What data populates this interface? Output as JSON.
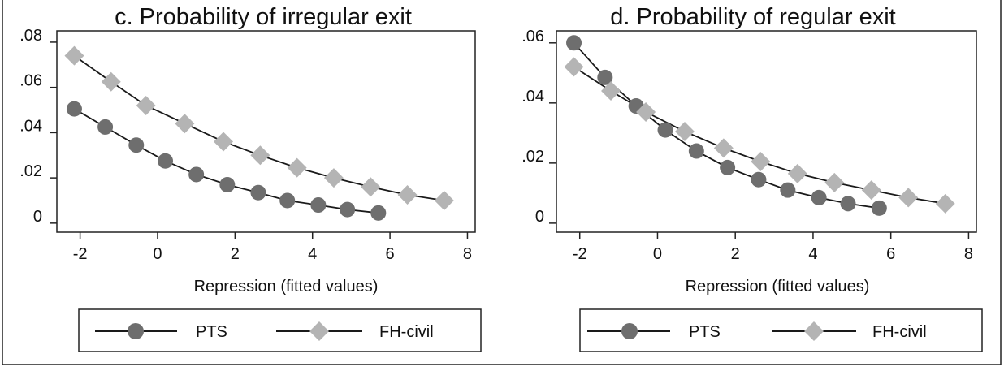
{
  "colors": {
    "pts": "#6e6e6e",
    "fh": "#b4b4b4",
    "line": "#1a1a1a",
    "frame": "#222222"
  },
  "chart_data": [
    {
      "type": "line",
      "title": "c. Probability of irregular exit",
      "xlabel": "Repression (fitted values)",
      "ylabel": "",
      "xlim": [
        -2.6,
        8.2
      ],
      "ylim": [
        -0.004,
        0.085
      ],
      "xticks": [
        -2,
        0,
        2,
        4,
        6,
        8
      ],
      "xtick_labels": [
        "-2",
        "0",
        "2",
        "4",
        "6",
        "8"
      ],
      "yticks": [
        0,
        0.02,
        0.04,
        0.06,
        0.08
      ],
      "ytick_labels": [
        "0",
        ".02",
        ".04",
        ".06",
        ".08"
      ],
      "grid": false,
      "legend": {
        "position": "bottom",
        "entries": [
          "PTS",
          "FH-civil"
        ]
      },
      "series": [
        {
          "name": "PTS",
          "marker": "circle",
          "x": [
            -2.15,
            -1.35,
            -0.55,
            0.2,
            1.0,
            1.8,
            2.6,
            3.35,
            4.15,
            4.9,
            5.7
          ],
          "y": [
            0.0505,
            0.0425,
            0.0345,
            0.0275,
            0.0215,
            0.017,
            0.0135,
            0.01,
            0.008,
            0.006,
            0.0045
          ]
        },
        {
          "name": "FH-civil",
          "marker": "diamond",
          "x": [
            -2.15,
            -1.2,
            -0.3,
            0.7,
            1.7,
            2.65,
            3.6,
            4.55,
            5.5,
            6.45,
            7.4
          ],
          "y": [
            0.074,
            0.0625,
            0.052,
            0.044,
            0.036,
            0.03,
            0.0245,
            0.02,
            0.016,
            0.0125,
            0.01
          ]
        }
      ]
    },
    {
      "type": "line",
      "title": "d. Probability of regular exit",
      "xlabel": "Repression (fitted values)",
      "ylabel": "",
      "xlim": [
        -2.6,
        8.2
      ],
      "ylim": [
        -0.003,
        0.064
      ],
      "xticks": [
        -2,
        0,
        2,
        4,
        6,
        8
      ],
      "xtick_labels": [
        "-2",
        "0",
        "2",
        "4",
        "6",
        "8"
      ],
      "yticks": [
        0,
        0.02,
        0.04,
        0.06
      ],
      "ytick_labels": [
        "0",
        ".02",
        ".04",
        ".06"
      ],
      "grid": false,
      "legend": {
        "position": "bottom",
        "entries": [
          "PTS",
          "FH-civil"
        ]
      },
      "series": [
        {
          "name": "PTS",
          "marker": "circle",
          "x": [
            -2.15,
            -1.35,
            -0.55,
            0.2,
            1.0,
            1.8,
            2.6,
            3.35,
            4.15,
            4.9,
            5.7
          ],
          "y": [
            0.06,
            0.0485,
            0.039,
            0.031,
            0.024,
            0.0185,
            0.0145,
            0.011,
            0.0085,
            0.0065,
            0.005
          ]
        },
        {
          "name": "FH-civil",
          "marker": "diamond",
          "x": [
            -2.15,
            -1.2,
            -0.3,
            0.7,
            1.7,
            2.65,
            3.6,
            4.55,
            5.5,
            6.45,
            7.4
          ],
          "y": [
            0.052,
            0.044,
            0.037,
            0.0305,
            0.025,
            0.0205,
            0.0165,
            0.0135,
            0.011,
            0.0085,
            0.0065
          ]
        }
      ]
    }
  ]
}
